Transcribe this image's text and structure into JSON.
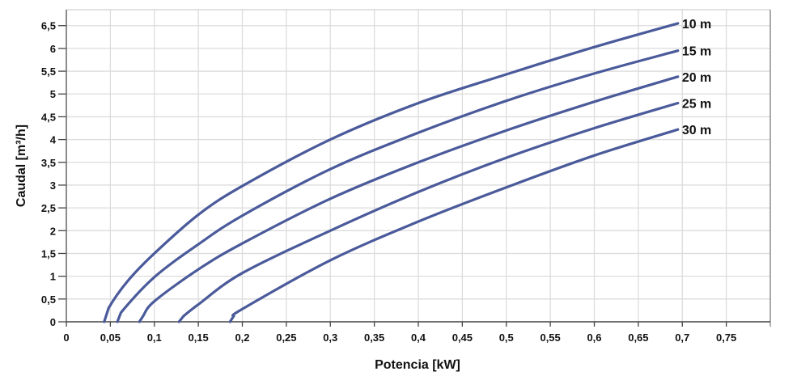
{
  "chart_data": {
    "type": "line",
    "title": "",
    "xlabel": "Potencia  [kW]",
    "ylabel": "Caudal  [m³/h]",
    "xlim": [
      0,
      0.8
    ],
    "ylim": [
      0,
      6.85
    ],
    "grid": true,
    "legend": "inline labels at line ends (right)",
    "x_ticks": [
      "0",
      "0,05",
      "0,1",
      "0,15",
      "0,2",
      "0,25",
      "0,3",
      "0,35",
      "0,4",
      "0,45",
      "0,5",
      "0,55",
      "0,6",
      "0,65",
      "0,7",
      "0,75"
    ],
    "y_ticks": [
      "0",
      "0,5",
      "1",
      "1,5",
      "2",
      "2,5",
      "3",
      "3,5",
      "4",
      "4,5",
      "5",
      "5,5",
      "6",
      "6,5"
    ],
    "line_color": "#4a5a9a",
    "series": [
      {
        "name": "10 m",
        "x": [
          0.043,
          0.048,
          0.07,
          0.1,
          0.15,
          0.2,
          0.3,
          0.4,
          0.5,
          0.6,
          0.695
        ],
        "y": [
          0,
          0.3,
          0.9,
          1.5,
          2.35,
          2.98,
          4.0,
          4.8,
          5.43,
          6.03,
          6.55
        ]
      },
      {
        "name": "15 m",
        "x": [
          0.058,
          0.062,
          0.1,
          0.15,
          0.2,
          0.3,
          0.4,
          0.5,
          0.6,
          0.695
        ],
        "y": [
          0,
          0.2,
          0.98,
          1.7,
          2.33,
          3.35,
          4.15,
          4.85,
          5.45,
          5.95
        ]
      },
      {
        "name": "20 m",
        "x": [
          0.083,
          0.087,
          0.1,
          0.15,
          0.2,
          0.3,
          0.4,
          0.5,
          0.6,
          0.695
        ],
        "y": [
          0,
          0.12,
          0.45,
          1.15,
          1.72,
          2.7,
          3.5,
          4.2,
          4.83,
          5.38
        ]
      },
      {
        "name": "25 m",
        "x": [
          0.128,
          0.133,
          0.15,
          0.2,
          0.3,
          0.4,
          0.5,
          0.6,
          0.695
        ],
        "y": [
          0,
          0.12,
          0.38,
          1.07,
          2.0,
          2.85,
          3.6,
          4.25,
          4.8
        ]
      },
      {
        "name": "30 m",
        "x": [
          0.186,
          0.19,
          0.2,
          0.3,
          0.4,
          0.5,
          0.6,
          0.695
        ],
        "y": [
          0,
          0.12,
          0.28,
          1.35,
          2.2,
          2.95,
          3.65,
          4.22
        ]
      }
    ]
  }
}
